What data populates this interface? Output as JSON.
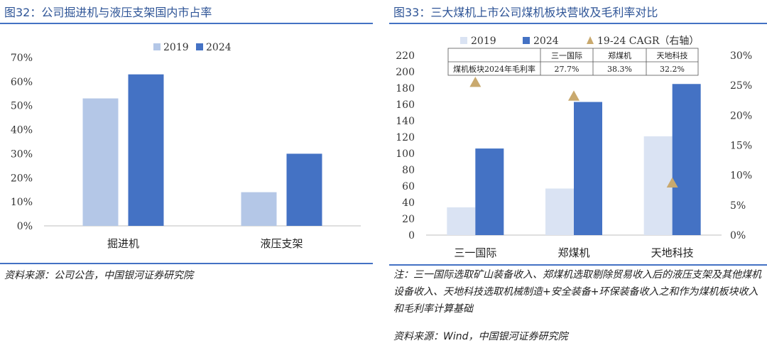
{
  "left": {
    "figure_title": "图32：公司掘进机与液压支架国内市占率",
    "source": "资料来源：公司公告，中国银河证券研究院"
  },
  "right": {
    "figure_title": "图33：三大煤机上市公司煤机板块营收及毛利率对比",
    "note": "注：三一国际选取矿山装备收入、郑煤机选取剔除贸易收入后的液压支架及其他煤机设备收入、天地科技选取机械制造+安全装备+环保装备收入之和作为煤机板块收入和毛利率计算基础",
    "source": "资料来源：Wind，中国银河证券研究院",
    "table": {
      "headers": [
        "",
        "三一国际",
        "郑煤机",
        "天地科技"
      ],
      "row_label": "煤机板块2024年毛利率",
      "row_values": [
        "27.7%",
        "38.3%",
        "32.2%"
      ]
    }
  },
  "chart_data": [
    {
      "type": "bar",
      "categories": [
        "掘进机",
        "液压支架"
      ],
      "series": [
        {
          "name": "2019",
          "values": [
            0.53,
            0.14
          ],
          "color": "#b4c7e7"
        },
        {
          "name": "2024",
          "values": [
            0.63,
            0.3
          ],
          "color": "#4472c4"
        }
      ],
      "yticks": [
        "0%",
        "10%",
        "20%",
        "30%",
        "40%",
        "50%",
        "60%",
        "70%"
      ],
      "ylim": [
        0,
        0.7
      ],
      "legend": "top-center",
      "grid": false
    },
    {
      "type": "bar",
      "categories": [
        "三一国际",
        "郑煤机",
        "天地科技"
      ],
      "series": [
        {
          "name": "2019",
          "values": [
            34,
            57,
            121
          ],
          "color": "#dae3f3",
          "axis": "left"
        },
        {
          "name": "2024",
          "values": [
            106,
            163,
            185
          ],
          "color": "#4472c4",
          "axis": "left"
        },
        {
          "name": "19-24 CAGR（右轴）",
          "kind": "scatter",
          "marker": "triangle",
          "values": [
            0.255,
            0.232,
            0.087
          ],
          "color": "#c9a96e",
          "axis": "right"
        }
      ],
      "yticks_left": [
        "0",
        "20",
        "40",
        "60",
        "80",
        "100",
        "120",
        "140",
        "160",
        "180",
        "200",
        "220"
      ],
      "yticks_right": [
        "0%",
        "5%",
        "10%",
        "15%",
        "20%",
        "25%",
        "30%"
      ],
      "ylim_left": [
        0,
        220
      ],
      "ylim_right": [
        0,
        0.3
      ],
      "legend": "top-center",
      "grid": false
    }
  ]
}
